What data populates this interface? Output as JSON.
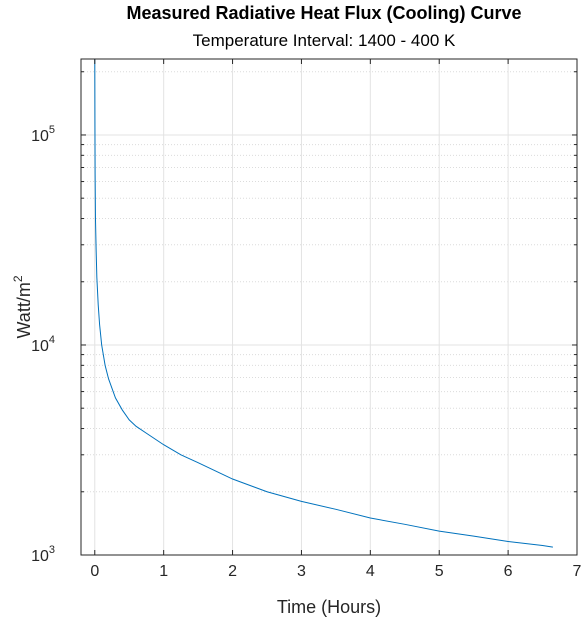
{
  "chart_data": {
    "type": "line",
    "title": "Measured Radiative Heat Flux (Cooling) Curve",
    "subtitle": "Temperature Interval: 1400 - 400 K",
    "xlabel": "Time (Hours)",
    "ylabel_base": "Watt/m",
    "ylabel_sup": "2",
    "yscale": "log",
    "xlim": [
      -0.2,
      7
    ],
    "ylim": [
      1000,
      230000
    ],
    "grid": true,
    "minor_grid": true,
    "xticks": [
      "0",
      "1",
      "2",
      "3",
      "4",
      "5",
      "6",
      "7"
    ],
    "yticks": [
      {
        "value": 1000,
        "base": "10",
        "exp": "3"
      },
      {
        "value": 10000,
        "base": "10",
        "exp": "4"
      },
      {
        "value": 100000,
        "base": "10",
        "exp": "5"
      }
    ],
    "series": [
      {
        "color": "#0072BD",
        "x": [
          0.0,
          0.002,
          0.005,
          0.01,
          0.02,
          0.03,
          0.05,
          0.07,
          0.1,
          0.15,
          0.2,
          0.3,
          0.4,
          0.5,
          0.6,
          0.75,
          1.0,
          1.25,
          1.5,
          2.0,
          2.5,
          3.0,
          3.5,
          4.0,
          4.5,
          5.0,
          5.5,
          6.0,
          6.5,
          6.65
        ],
        "y": [
          230000,
          120000,
          65000,
          40000,
          28000,
          21000,
          15500,
          12500,
          10000,
          8000,
          6900,
          5600,
          4900,
          4400,
          4100,
          3800,
          3350,
          3000,
          2750,
          2300,
          2000,
          1800,
          1650,
          1500,
          1400,
          1300,
          1230,
          1160,
          1110,
          1090
        ]
      }
    ]
  }
}
